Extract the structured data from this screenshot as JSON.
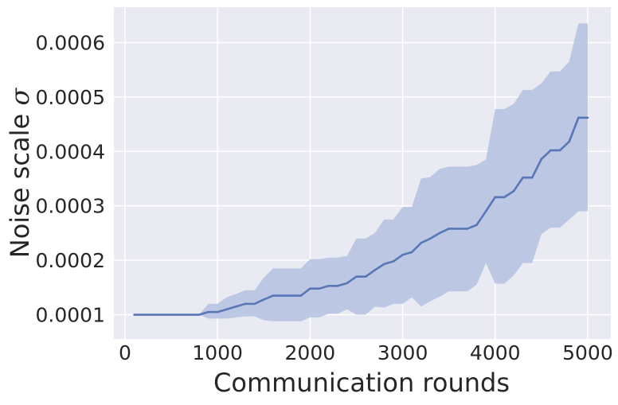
{
  "chart_data": {
    "type": "line",
    "xlabel": "Communication rounds",
    "ylabel_main": "Noise scale ",
    "ylabel_symbol": "σ",
    "xlim": [
      -120,
      5250
    ],
    "ylim": [
      5.55e-05,
      0.000665
    ],
    "xticks": [
      0,
      1000,
      2000,
      3000,
      4000,
      5000
    ],
    "yticks": [
      0.0001,
      0.0002,
      0.0003,
      0.0004,
      0.0005,
      0.0006
    ],
    "xtick_labels": [
      "0",
      "1000",
      "2000",
      "3000",
      "4000",
      "5000"
    ],
    "ytick_labels": [
      "0.0001",
      "0.0002",
      "0.0003",
      "0.0004",
      "0.0005",
      "0.0006"
    ],
    "grid": true,
    "colors": {
      "background": "#eaeaf2",
      "grid": "#ffffff",
      "line": "#5976b7",
      "band": "#b3c1e1"
    },
    "series": [
      {
        "x": [
          100,
          800,
          900,
          1000,
          1100,
          1200,
          1300,
          1400,
          1500,
          1600,
          1700,
          1800,
          1900,
          2000,
          2100,
          2200,
          2300,
          2400,
          2500,
          2600,
          2700,
          2800,
          2900,
          3000,
          3100,
          3200,
          3300,
          3400,
          3500,
          3600,
          3700,
          3800,
          3900,
          4000,
          4100,
          4200,
          4300,
          4400,
          4500,
          4600,
          4700,
          4800,
          4900,
          5000
        ],
        "mean": [
          0.0001,
          0.0001,
          0.000105,
          0.000105,
          0.00011,
          0.000115,
          0.00012,
          0.00012,
          0.000128,
          0.000135,
          0.000135,
          0.000135,
          0.000135,
          0.000148,
          0.000148,
          0.000153,
          0.000153,
          0.000158,
          0.00017,
          0.00017,
          0.000182,
          0.000193,
          0.000198,
          0.00021,
          0.000215,
          0.000232,
          0.00024,
          0.00025,
          0.000258,
          0.000258,
          0.000258,
          0.000265,
          0.00029,
          0.000316,
          0.000316,
          0.000327,
          0.000352,
          0.000352,
          0.000386,
          0.000402,
          0.000402,
          0.000418,
          0.000462,
          0.000462
        ],
        "lower": [
          0.0001,
          0.0001,
          9.3e-05,
          9.3e-05,
          9.3e-05,
          9.5e-05,
          9.7e-05,
          9.7e-05,
          9e-05,
          8.8e-05,
          8.8e-05,
          8.8e-05,
          8.8e-05,
          9.5e-05,
          9.5e-05,
          0.000102,
          0.000102,
          0.00011,
          0.0001,
          0.0001,
          0.000115,
          0.000113,
          0.00012,
          0.00012,
          0.000132,
          0.000115,
          0.000125,
          0.000133,
          0.000143,
          0.000143,
          0.000143,
          0.000155,
          0.000195,
          0.000157,
          0.000157,
          0.000172,
          0.000195,
          0.000195,
          0.000248,
          0.00026,
          0.00026,
          0.000275,
          0.00029,
          0.00029
        ],
        "upper": [
          0.0001,
          0.0001,
          0.00012,
          0.00012,
          0.000132,
          0.000138,
          0.000145,
          0.000145,
          0.000168,
          0.000185,
          0.000185,
          0.000185,
          0.000185,
          0.000202,
          0.000202,
          0.000205,
          0.000205,
          0.000208,
          0.00024,
          0.00024,
          0.00025,
          0.000275,
          0.000275,
          0.000298,
          0.000298,
          0.00035,
          0.000353,
          0.000368,
          0.000372,
          0.000372,
          0.000372,
          0.000375,
          0.000385,
          0.000478,
          0.000478,
          0.000487,
          0.000513,
          0.000513,
          0.000525,
          0.000547,
          0.000547,
          0.000565,
          0.000635,
          0.000635
        ]
      }
    ]
  }
}
